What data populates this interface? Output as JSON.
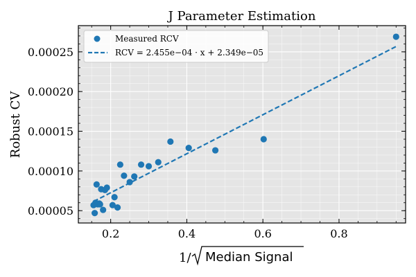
{
  "chart_data": {
    "type": "scatter",
    "title": "J Parameter Estimation",
    "xlabel_prefix": "1/",
    "xlabel": "Median Signal",
    "ylabel": "Robust CV",
    "xlim": [
      0.115,
      0.975
    ],
    "ylim": [
      3.45e-05,
      0.000283
    ],
    "x_ticks": [
      0.2,
      0.4,
      0.6,
      0.8
    ],
    "x_tick_labels": [
      "0.2",
      "0.4",
      "0.6",
      "0.8"
    ],
    "y_ticks": [
      5e-05,
      0.0001,
      0.00015,
      0.0002,
      0.00025
    ],
    "y_tick_labels": [
      "0.00005",
      "0.00010",
      "0.00015",
      "0.00020",
      "0.00025"
    ],
    "grid": true,
    "legend_position": "top-left",
    "colors": {
      "points": "#1f77b4",
      "fit": "#1f77b4",
      "background": "#e5e5e5",
      "grid": "#ffffff"
    },
    "series": [
      {
        "name": "Measured RCV",
        "type": "scatter",
        "x": [
          0.155,
          0.158,
          0.16,
          0.163,
          0.166,
          0.17,
          0.172,
          0.175,
          0.18,
          0.185,
          0.19,
          0.205,
          0.21,
          0.218,
          0.225,
          0.235,
          0.25,
          0.262,
          0.28,
          0.3,
          0.325,
          0.357,
          0.405,
          0.475,
          0.602,
          0.95
        ],
        "y": [
          5.7e-05,
          4.7e-05,
          6e-05,
          8.3e-05,
          5.8e-05,
          5.9e-05,
          5.8e-05,
          7.7e-05,
          5.1e-05,
          7.6e-05,
          7.9e-05,
          5.7e-05,
          6.7e-05,
          5.4e-05,
          0.000108,
          9.4e-05,
          8.6e-05,
          9.3e-05,
          0.000108,
          0.000106,
          0.000111,
          0.000137,
          0.000129,
          0.000126,
          0.00014,
          0.000269
        ]
      },
      {
        "name": "RCV = 2.455e−04 · x + 2.349e−05",
        "type": "line",
        "slope": 0.0002455,
        "intercept": 2.349e-05,
        "x_range": [
          0.155,
          0.95
        ]
      }
    ]
  }
}
